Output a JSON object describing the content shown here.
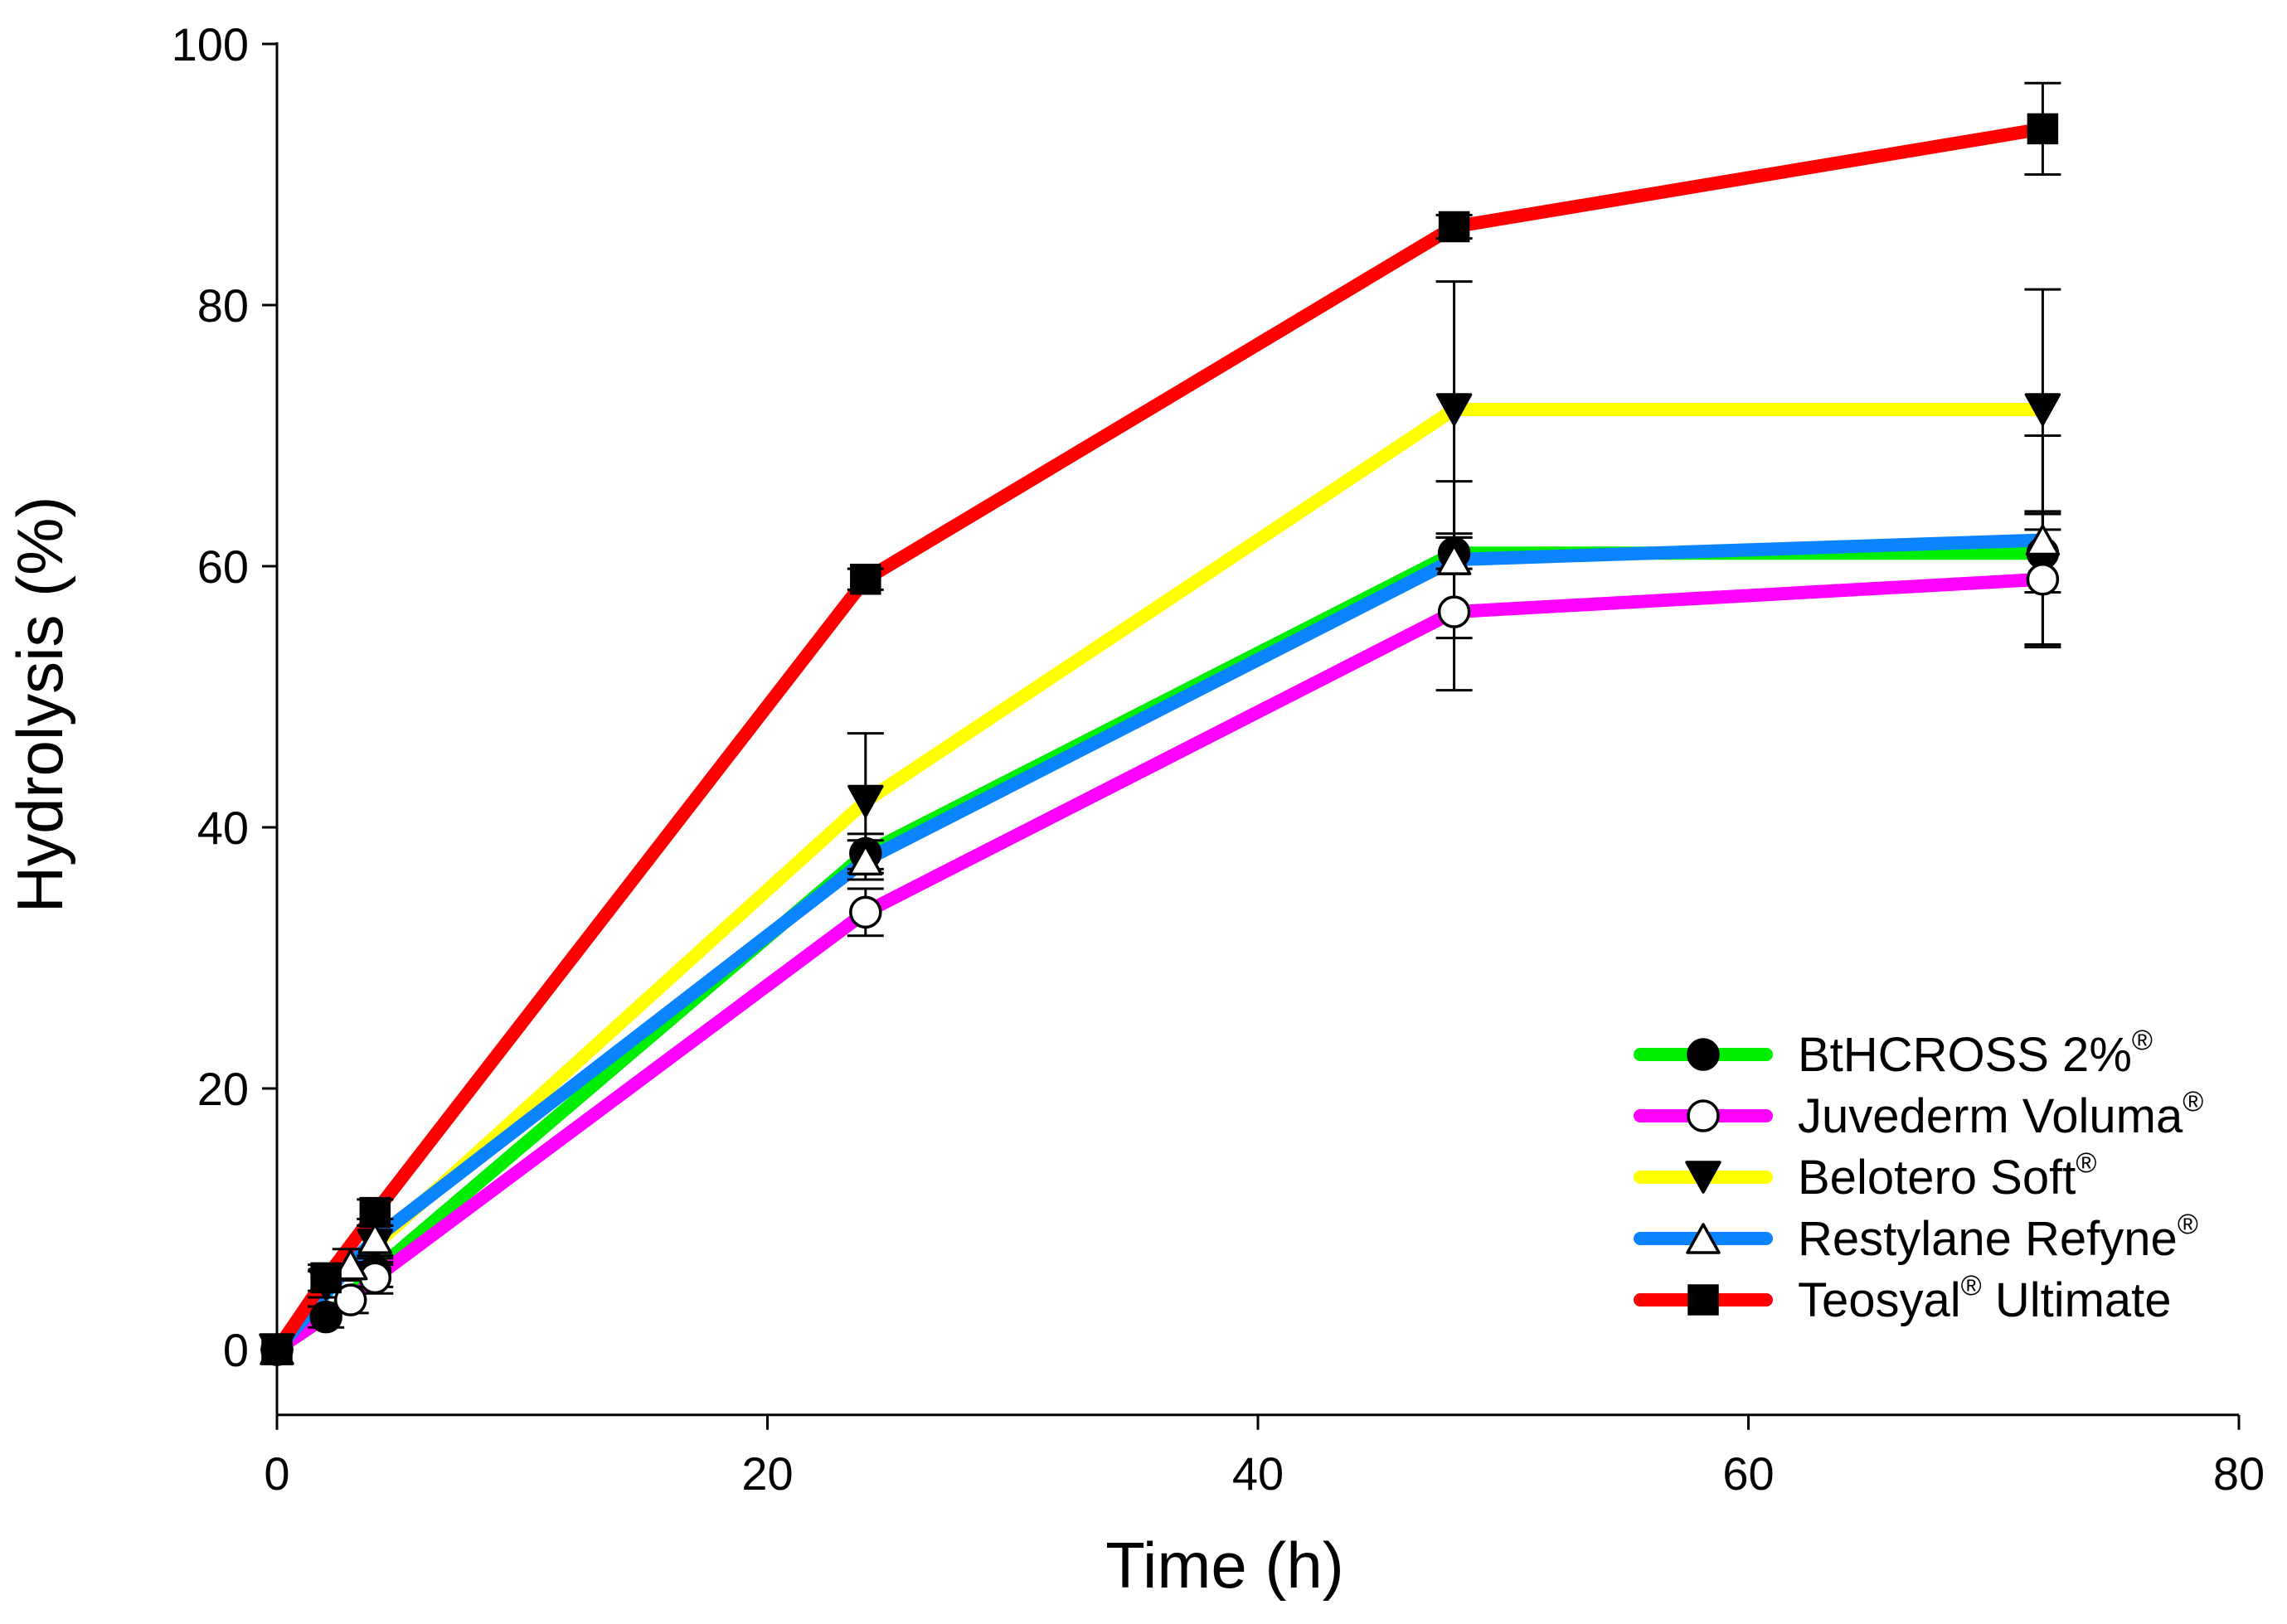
{
  "chart_data": {
    "type": "line",
    "title": "",
    "xlabel": "Time (h)",
    "ylabel": "Hydrolysis (%)",
    "xlim": [
      0,
      80
    ],
    "ylim": [
      -5,
      100
    ],
    "xticks": [
      0,
      20,
      40,
      60,
      80
    ],
    "yticks": [
      0,
      20,
      40,
      60,
      80,
      100
    ],
    "xtick_labels": [
      "0",
      "20",
      "40",
      "60",
      "80"
    ],
    "ytick_labels": [
      "0",
      "20",
      "40",
      "60",
      "80",
      "100"
    ],
    "grid": false,
    "legend_position": "bottom-right",
    "series": [
      {
        "name": "BtHCROSS 2%",
        "legend_parts": [
          "BtHCROSS 2%",
          "®",
          ""
        ],
        "color": "#00ee00",
        "marker": "filled-circle",
        "x": [
          0,
          2,
          4,
          24,
          48,
          72
        ],
        "y": [
          0,
          2.5,
          6,
          38,
          61,
          61
        ],
        "err": [
          0.3,
          0.8,
          1.2,
          1.5,
          1.2,
          3.0
        ]
      },
      {
        "name": "Juvederm Voluma",
        "legend_parts": [
          "Juvederm Voluma",
          "®",
          ""
        ],
        "color": "#ff00ff",
        "marker": "open-circle",
        "x": [
          0,
          3,
          4,
          24,
          48,
          72
        ],
        "y": [
          0,
          3.8,
          5.5,
          33.5,
          56.5,
          59
        ],
        "err": [
          0.3,
          1.0,
          1.2,
          1.8,
          6.0,
          5.2
        ]
      },
      {
        "name": "Belotero Soft",
        "legend_parts": [
          "Belotero Soft",
          "®",
          ""
        ],
        "color": "#ffff00",
        "marker": "filled-triangle-down",
        "x": [
          0,
          2,
          4,
          24,
          48,
          72
        ],
        "y": [
          0,
          5,
          8,
          42,
          72,
          72
        ],
        "err": [
          0.3,
          1.0,
          1.5,
          5.2,
          9.8,
          9.2
        ]
      },
      {
        "name": "Restylane Refyne",
        "legend_parts": [
          "Restylane Refyne",
          "®",
          ""
        ],
        "color": "#0a84ff",
        "marker": "open-triangle-up",
        "x": [
          0,
          3,
          4,
          24,
          48,
          72
        ],
        "y": [
          0,
          6.5,
          8.5,
          37.5,
          60.5,
          62
        ],
        "err": [
          0.3,
          1.2,
          1.5,
          1.5,
          6.0,
          8.0
        ]
      },
      {
        "name": "Teosyal Ultimate",
        "legend_parts": [
          "Teosyal",
          "®",
          " Ultimate"
        ],
        "color": "#ff0000",
        "marker": "filled-square",
        "x": [
          0,
          2,
          4,
          24,
          48,
          72
        ],
        "y": [
          0,
          5.5,
          10.5,
          59,
          86,
          93.5
        ],
        "err": [
          0.3,
          1.0,
          1.0,
          0.8,
          0.9,
          3.5
        ]
      }
    ]
  }
}
